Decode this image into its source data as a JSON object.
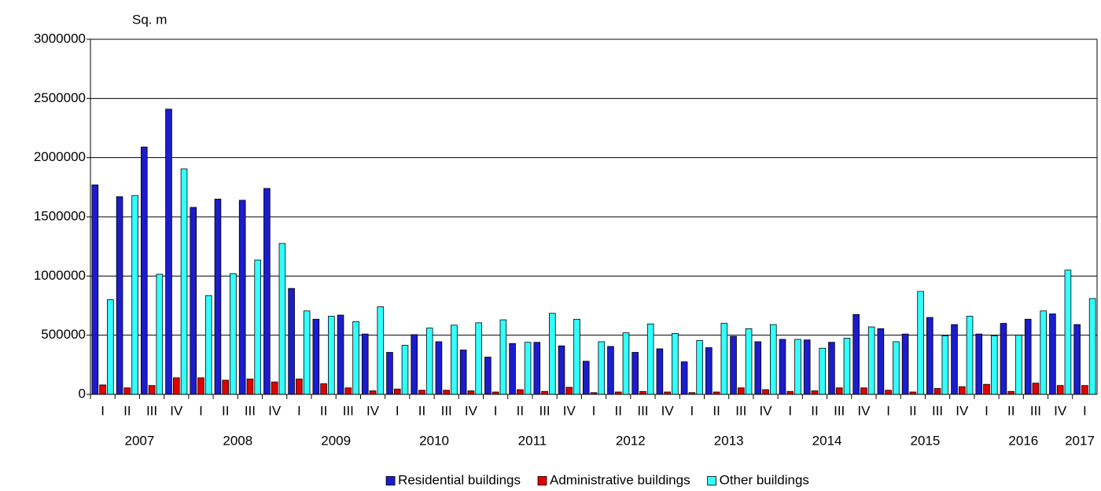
{
  "chart_data": {
    "type": "bar",
    "y_label": "Sq. m",
    "categories": [
      "I",
      "II",
      "III",
      "IV",
      "I",
      "II",
      "III",
      "IV",
      "I",
      "II",
      "III",
      "IV",
      "I",
      "II",
      "III",
      "IV",
      "I",
      "II",
      "III",
      "IV",
      "I",
      "II",
      "III",
      "IV",
      "I",
      "II",
      "III",
      "IV",
      "I",
      "II",
      "III",
      "IV",
      "I",
      "II",
      "III",
      "IV",
      "I",
      "II",
      "III",
      "IV",
      "I"
    ],
    "years": [
      "2007",
      null,
      null,
      null,
      "2008",
      null,
      null,
      null,
      "2009",
      null,
      null,
      null,
      "2010",
      null,
      null,
      null,
      "2011",
      null,
      null,
      null,
      "2012",
      null,
      null,
      null,
      "2013",
      null,
      null,
      null,
      "2014",
      null,
      null,
      null,
      "2015",
      null,
      null,
      null,
      "2016",
      null,
      null,
      null,
      "2017"
    ],
    "series": [
      {
        "name": "Residential buildings",
        "color": "#1c1ccc",
        "values": [
          1770000,
          1670000,
          2090000,
          2410000,
          1580000,
          1650000,
          1640000,
          1740000,
          895000,
          635000,
          670000,
          510000,
          355000,
          505000,
          445000,
          375000,
          315000,
          430000,
          440000,
          410000,
          280000,
          405000,
          355000,
          385000,
          275000,
          395000,
          490000,
          445000,
          465000,
          460000,
          440000,
          675000,
          555000,
          510000,
          650000,
          590000,
          510000,
          600000,
          635000,
          680000,
          590000
        ]
      },
      {
        "name": "Administrative buildings",
        "color": "#e00000",
        "values": [
          80000,
          55000,
          75000,
          140000,
          140000,
          120000,
          130000,
          105000,
          130000,
          90000,
          55000,
          30000,
          45000,
          35000,
          35000,
          30000,
          20000,
          40000,
          25000,
          60000,
          15000,
          20000,
          25000,
          20000,
          15000,
          20000,
          55000,
          40000,
          25000,
          30000,
          55000,
          55000,
          35000,
          20000,
          50000,
          65000,
          85000,
          25000,
          95000,
          75000,
          75000
        ]
      },
      {
        "name": "Other buildings",
        "color": "#33ffff",
        "values": [
          800000,
          1680000,
          1015000,
          1905000,
          835000,
          1020000,
          1135000,
          1275000,
          705000,
          660000,
          615000,
          740000,
          415000,
          560000,
          585000,
          605000,
          630000,
          440000,
          685000,
          635000,
          445000,
          520000,
          595000,
          515000,
          455000,
          600000,
          555000,
          590000,
          465000,
          390000,
          475000,
          570000,
          445000,
          870000,
          495000,
          660000,
          495000,
          500000,
          705000,
          1050000,
          810000
        ]
      }
    ],
    "ylim": [
      0,
      3000000
    ],
    "yticks": [
      0,
      500000,
      1000000,
      1500000,
      2000000,
      2500000,
      3000000
    ],
    "grid": true,
    "legend": "bottom"
  }
}
